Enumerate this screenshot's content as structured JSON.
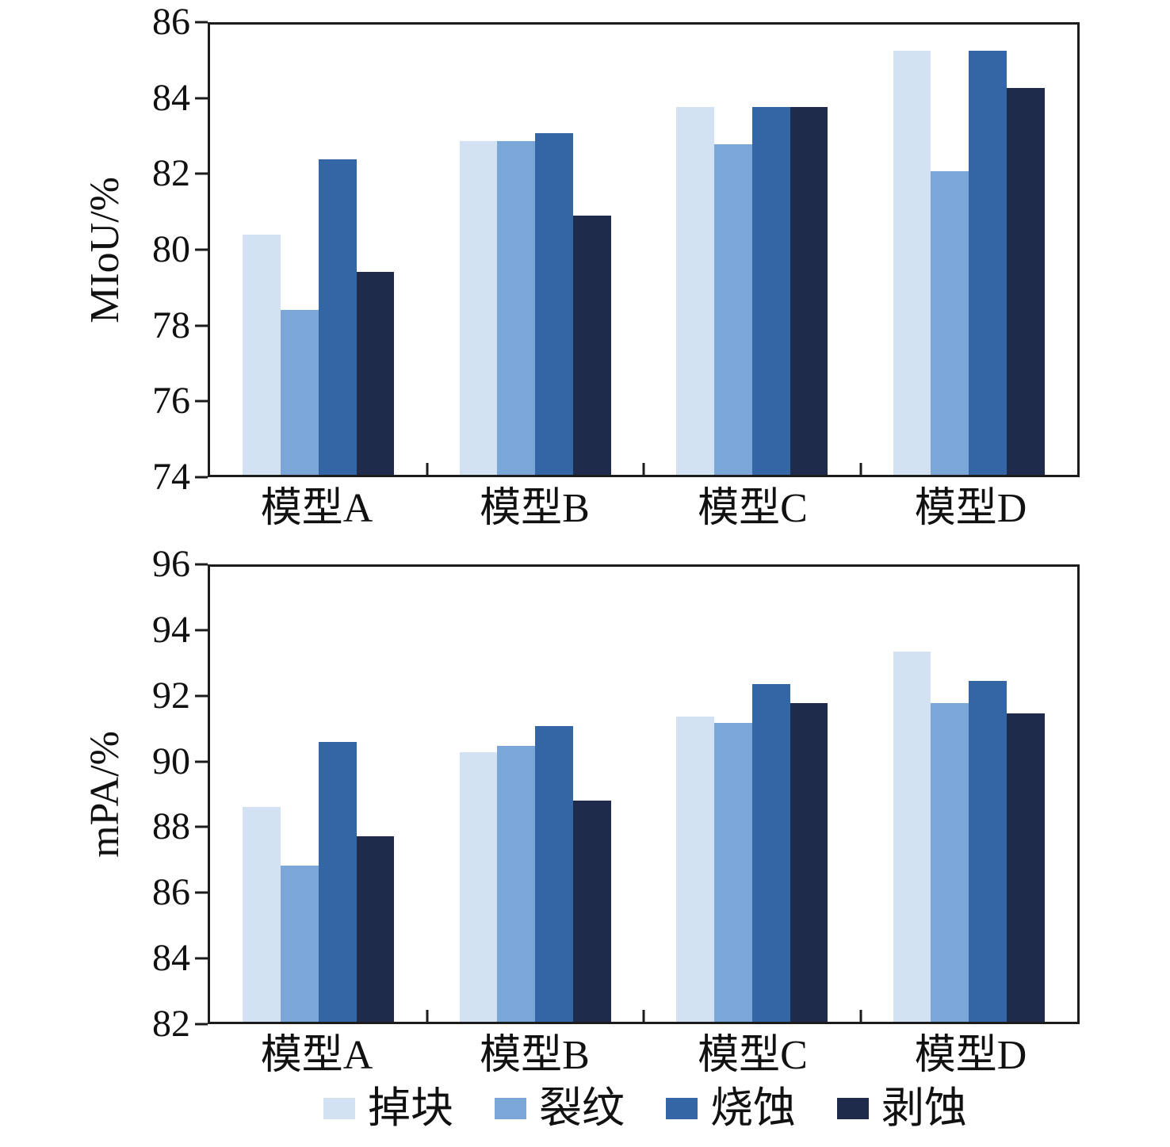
{
  "colors": {
    "series": [
      "#d3e2f3",
      "#7aa6d8",
      "#3465a4",
      "#1e2b4b"
    ],
    "axis": "#1c1c1c",
    "text": "#111111",
    "background": "#ffffff"
  },
  "chart_data": [
    {
      "type": "bar",
      "title": "",
      "xlabel": "",
      "ylabel": "MIoU/%",
      "categories": [
        "模型A",
        "模型B",
        "模型C",
        "模型D"
      ],
      "series": [
        {
          "name": "掉块",
          "values": [
            80.4,
            82.9,
            83.8,
            85.3
          ]
        },
        {
          "name": "裂纹",
          "values": [
            78.4,
            82.9,
            82.8,
            82.1
          ]
        },
        {
          "name": "烧蚀",
          "values": [
            82.4,
            83.1,
            83.8,
            85.3
          ]
        },
        {
          "name": "剥蚀",
          "values": [
            79.4,
            80.9,
            83.8,
            84.3
          ]
        }
      ],
      "ylim": [
        74,
        86
      ],
      "yticks": [
        74,
        76,
        78,
        80,
        82,
        84,
        86
      ],
      "grid": false,
      "legend_position": "shared-bottom"
    },
    {
      "type": "bar",
      "title": "",
      "xlabel": "",
      "ylabel": "mPA/%",
      "categories": [
        "模型A",
        "模型B",
        "模型C",
        "模型D"
      ],
      "series": [
        {
          "name": "掉块",
          "values": [
            88.6,
            90.3,
            91.4,
            93.4
          ]
        },
        {
          "name": "裂纹",
          "values": [
            86.8,
            90.5,
            91.2,
            91.8
          ]
        },
        {
          "name": "烧蚀",
          "values": [
            90.6,
            91.1,
            92.4,
            92.5
          ]
        },
        {
          "name": "剥蚀",
          "values": [
            87.7,
            88.8,
            91.8,
            91.5
          ]
        }
      ],
      "ylim": [
        82,
        96
      ],
      "yticks": [
        82,
        84,
        86,
        88,
        90,
        92,
        94,
        96
      ],
      "grid": false,
      "legend_position": "shared-bottom"
    }
  ],
  "legend": {
    "position": "bottom",
    "items": [
      {
        "label": "掉块",
        "color": "#d3e2f3"
      },
      {
        "label": "裂纹",
        "color": "#7aa6d8"
      },
      {
        "label": "烧蚀",
        "color": "#3465a4"
      },
      {
        "label": "剥蚀",
        "color": "#1e2b4b"
      }
    ]
  }
}
